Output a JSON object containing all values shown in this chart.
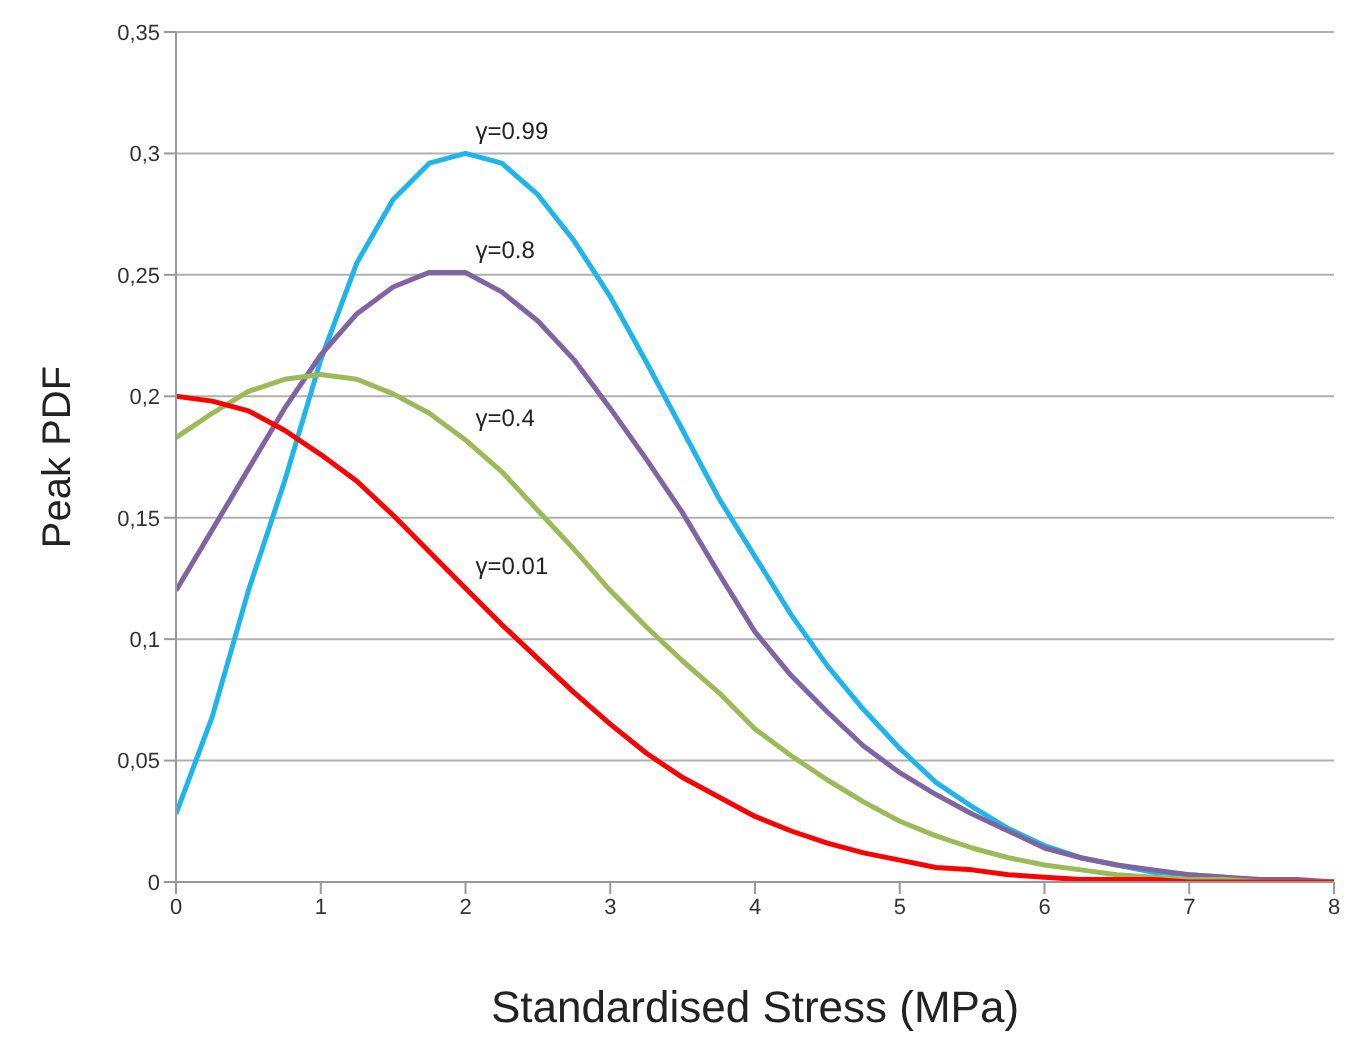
{
  "chart_data": {
    "type": "line",
    "xlabel": "Standardised Stress (MPa)",
    "ylabel": "Peak PDF",
    "x": [
      0,
      0.25,
      0.5,
      0.75,
      1,
      1.25,
      1.5,
      1.75,
      2,
      2.25,
      2.5,
      2.75,
      3,
      3.25,
      3.5,
      3.75,
      4,
      4.25,
      4.5,
      4.75,
      5,
      5.25,
      5.5,
      5.75,
      6,
      6.25,
      6.5,
      6.75,
      7,
      7.25,
      7.5,
      7.75,
      8
    ],
    "series": [
      {
        "color": "#1fb4ea",
        "values": [
          0.028,
          0.068,
          0.12,
          0.165,
          0.215,
          0.255,
          0.281,
          0.296,
          0.3,
          0.296,
          0.283,
          0.264,
          0.241,
          0.214,
          0.186,
          0.158,
          0.134,
          0.11,
          0.089,
          0.071,
          0.055,
          0.041,
          0.031,
          0.022,
          0.015,
          0.01,
          0.007,
          0.004,
          0.003,
          0.002,
          null,
          null,
          null
        ],
        "name": "γ=0.99"
      },
      {
        "color": "#8064a2",
        "name": "γ=0.8",
        "values": [
          0.12,
          0.145,
          0.17,
          0.195,
          0.217,
          0.234,
          0.245,
          0.251,
          0.251,
          0.243,
          0.231,
          0.215,
          0.195,
          0.174,
          0.152,
          0.127,
          0.103,
          0.085,
          0.07,
          0.056,
          0.045,
          0.036,
          0.028,
          0.021,
          0.014,
          0.01,
          0.007,
          0.005,
          0.003,
          0.002,
          0.001,
          0.001,
          0
        ]
      },
      {
        "color": "#9bbb59",
        "name": "γ=0.4",
        "values": [
          0.183,
          0.193,
          0.202,
          0.207,
          0.209,
          0.207,
          0.201,
          0.193,
          0.182,
          0.169,
          0.153,
          0.137,
          0.12,
          0.105,
          0.091,
          0.078,
          0.063,
          0.052,
          0.042,
          0.033,
          0.025,
          0.019,
          0.014,
          0.01,
          0.007,
          0.005,
          0.003,
          0.002,
          0.001,
          0.001,
          0,
          0,
          0
        ]
      },
      {
        "color": "#ff0000",
        "name": "γ=0.01",
        "values": [
          0.2,
          0.198,
          0.194,
          0.186,
          0.176,
          0.165,
          0.151,
          0.136,
          0.121,
          0.106,
          0.092,
          0.078,
          0.065,
          0.053,
          0.043,
          0.035,
          0.027,
          0.021,
          0.016,
          0.012,
          0.009,
          0.006,
          0.005,
          0.003,
          0.002,
          0.001,
          0.001,
          0.001,
          0,
          0,
          0,
          0,
          0
        ]
      }
    ],
    "xlim": [
      0,
      8
    ],
    "xticks": [
      0,
      1,
      2,
      3,
      4,
      5,
      6,
      7,
      8
    ],
    "ylim": [
      0,
      0.35
    ],
    "yticks": [
      0,
      {
        "value": 0.05,
        "label": "0,05"
      },
      {
        "value": 0.1,
        "label": "0,1"
      },
      {
        "value": 0.15,
        "label": "0,15"
      },
      {
        "value": 0.2,
        "label": "0,2"
      },
      {
        "value": 0.25,
        "label": "0,25"
      },
      {
        "value": 0.3,
        "label": "0,3"
      },
      {
        "value": 0.35,
        "label": "0,35"
      }
    ],
    "grid": "y",
    "legend": false,
    "marker": "none",
    "line_style": "solid"
  }
}
